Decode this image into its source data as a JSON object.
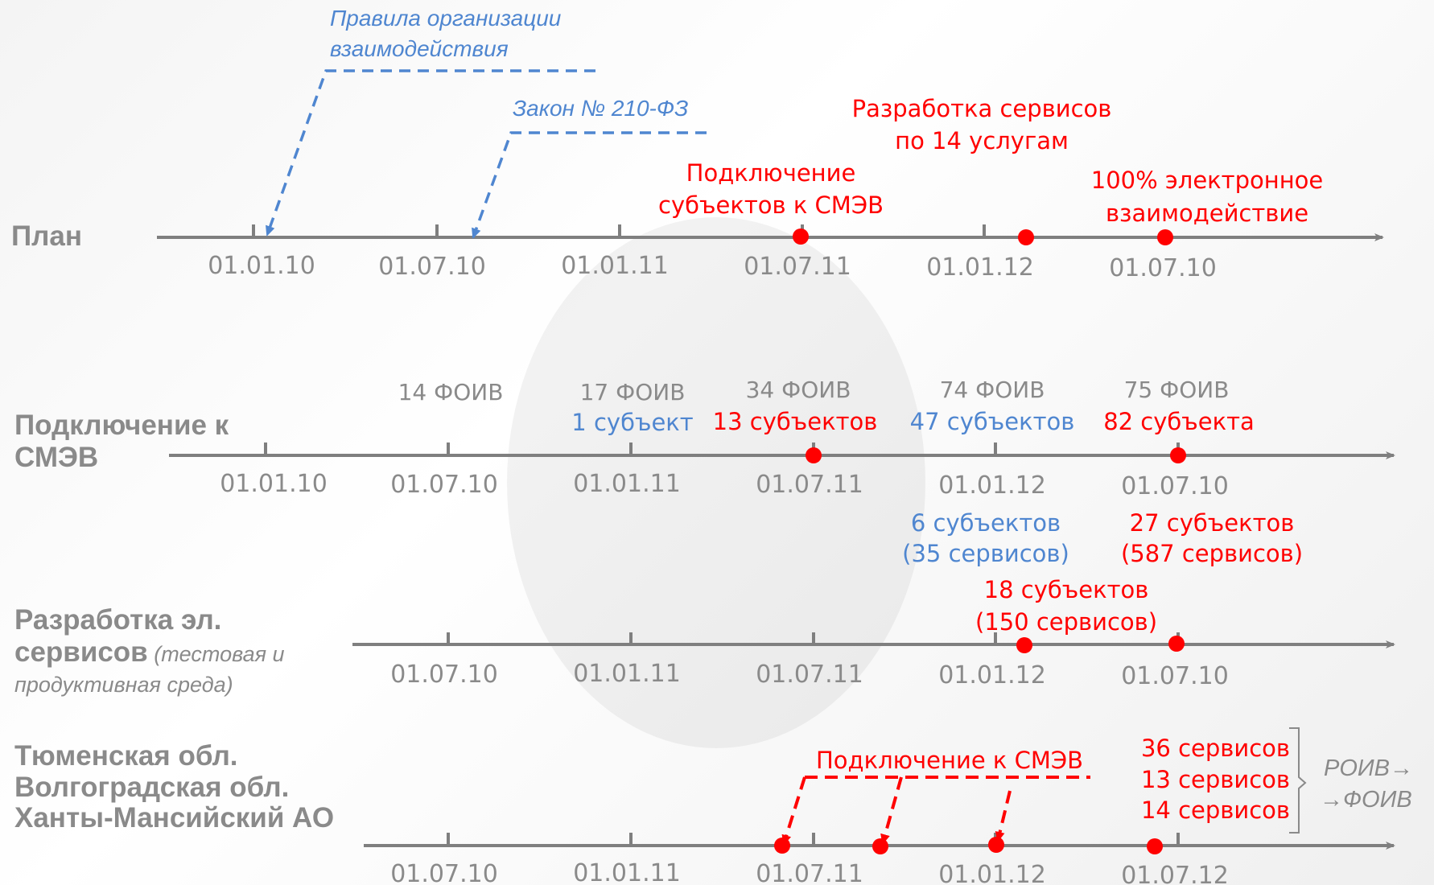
{
  "colors": {
    "axis": "#7f7f7f",
    "label": "#8a8a8a",
    "red": "#ff0000",
    "blue": "#4f86d0"
  },
  "rows": [
    {
      "title": [
        "План"
      ],
      "note": [],
      "ticks": [
        "01.01.10",
        "01.07.10",
        "01.01.11",
        "01.07.11",
        "01.01.12",
        "01.07.10"
      ]
    },
    {
      "title": [
        "Подключение к",
        "СМЭВ"
      ],
      "note": [],
      "ticks": [
        "01.01.10",
        "01.07.10",
        "01.01.11",
        "01.07.11",
        "01.01.12",
        "01.07.10"
      ]
    },
    {
      "title": [
        "Разработка эл.",
        "сервисов"
      ],
      "note": [
        " (тестовая и",
        "продуктивная среда)"
      ],
      "ticks": [
        "01.07.10",
        "01.01.11",
        "01.07.11",
        "01.01.12",
        "01.07.10"
      ]
    },
    {
      "title": [
        "Тюменская обл.",
        "Волгоградская обл.",
        "Ханты-Мансийский АО"
      ],
      "note": [],
      "ticks": [
        "01.07.10",
        "01.01.11",
        "01.07.11",
        "01.01.12",
        "01.07.12"
      ]
    }
  ],
  "plan": {
    "rules": [
      "Правила организации",
      "взаимодействия"
    ],
    "law": "Закон № 210-ФЗ",
    "dev_services": [
      "Разработка сервисов",
      "по 14 услугам"
    ],
    "connect": [
      "Подключение",
      "субъектов к СМЭВ"
    ],
    "electronic": [
      "100% электронное",
      "взаимодействие"
    ]
  },
  "smev": {
    "foiv": [
      "14 ФОИВ",
      "17 ФОИВ",
      "34 ФОИВ",
      "74 ФОИВ",
      "75 ФОИВ"
    ],
    "subjects": [
      "1 субъект",
      "13 субъектов",
      "47 субъектов",
      "82 субъекта"
    ],
    "below_blue": [
      "6 субъектов",
      "(35 сервисов)"
    ],
    "below_red": [
      "27 субъектов",
      "(587 сервисов)"
    ]
  },
  "services": {
    "label": [
      "18 субъектов",
      "(150 сервисов)"
    ]
  },
  "regions": {
    "connect_label": "Подключение к СМЭВ",
    "counts": [
      "36 сервисов",
      "13 сервисов",
      "14 сервисов"
    ],
    "roiv": [
      "РОИВ→",
      "→ФОИВ"
    ]
  }
}
